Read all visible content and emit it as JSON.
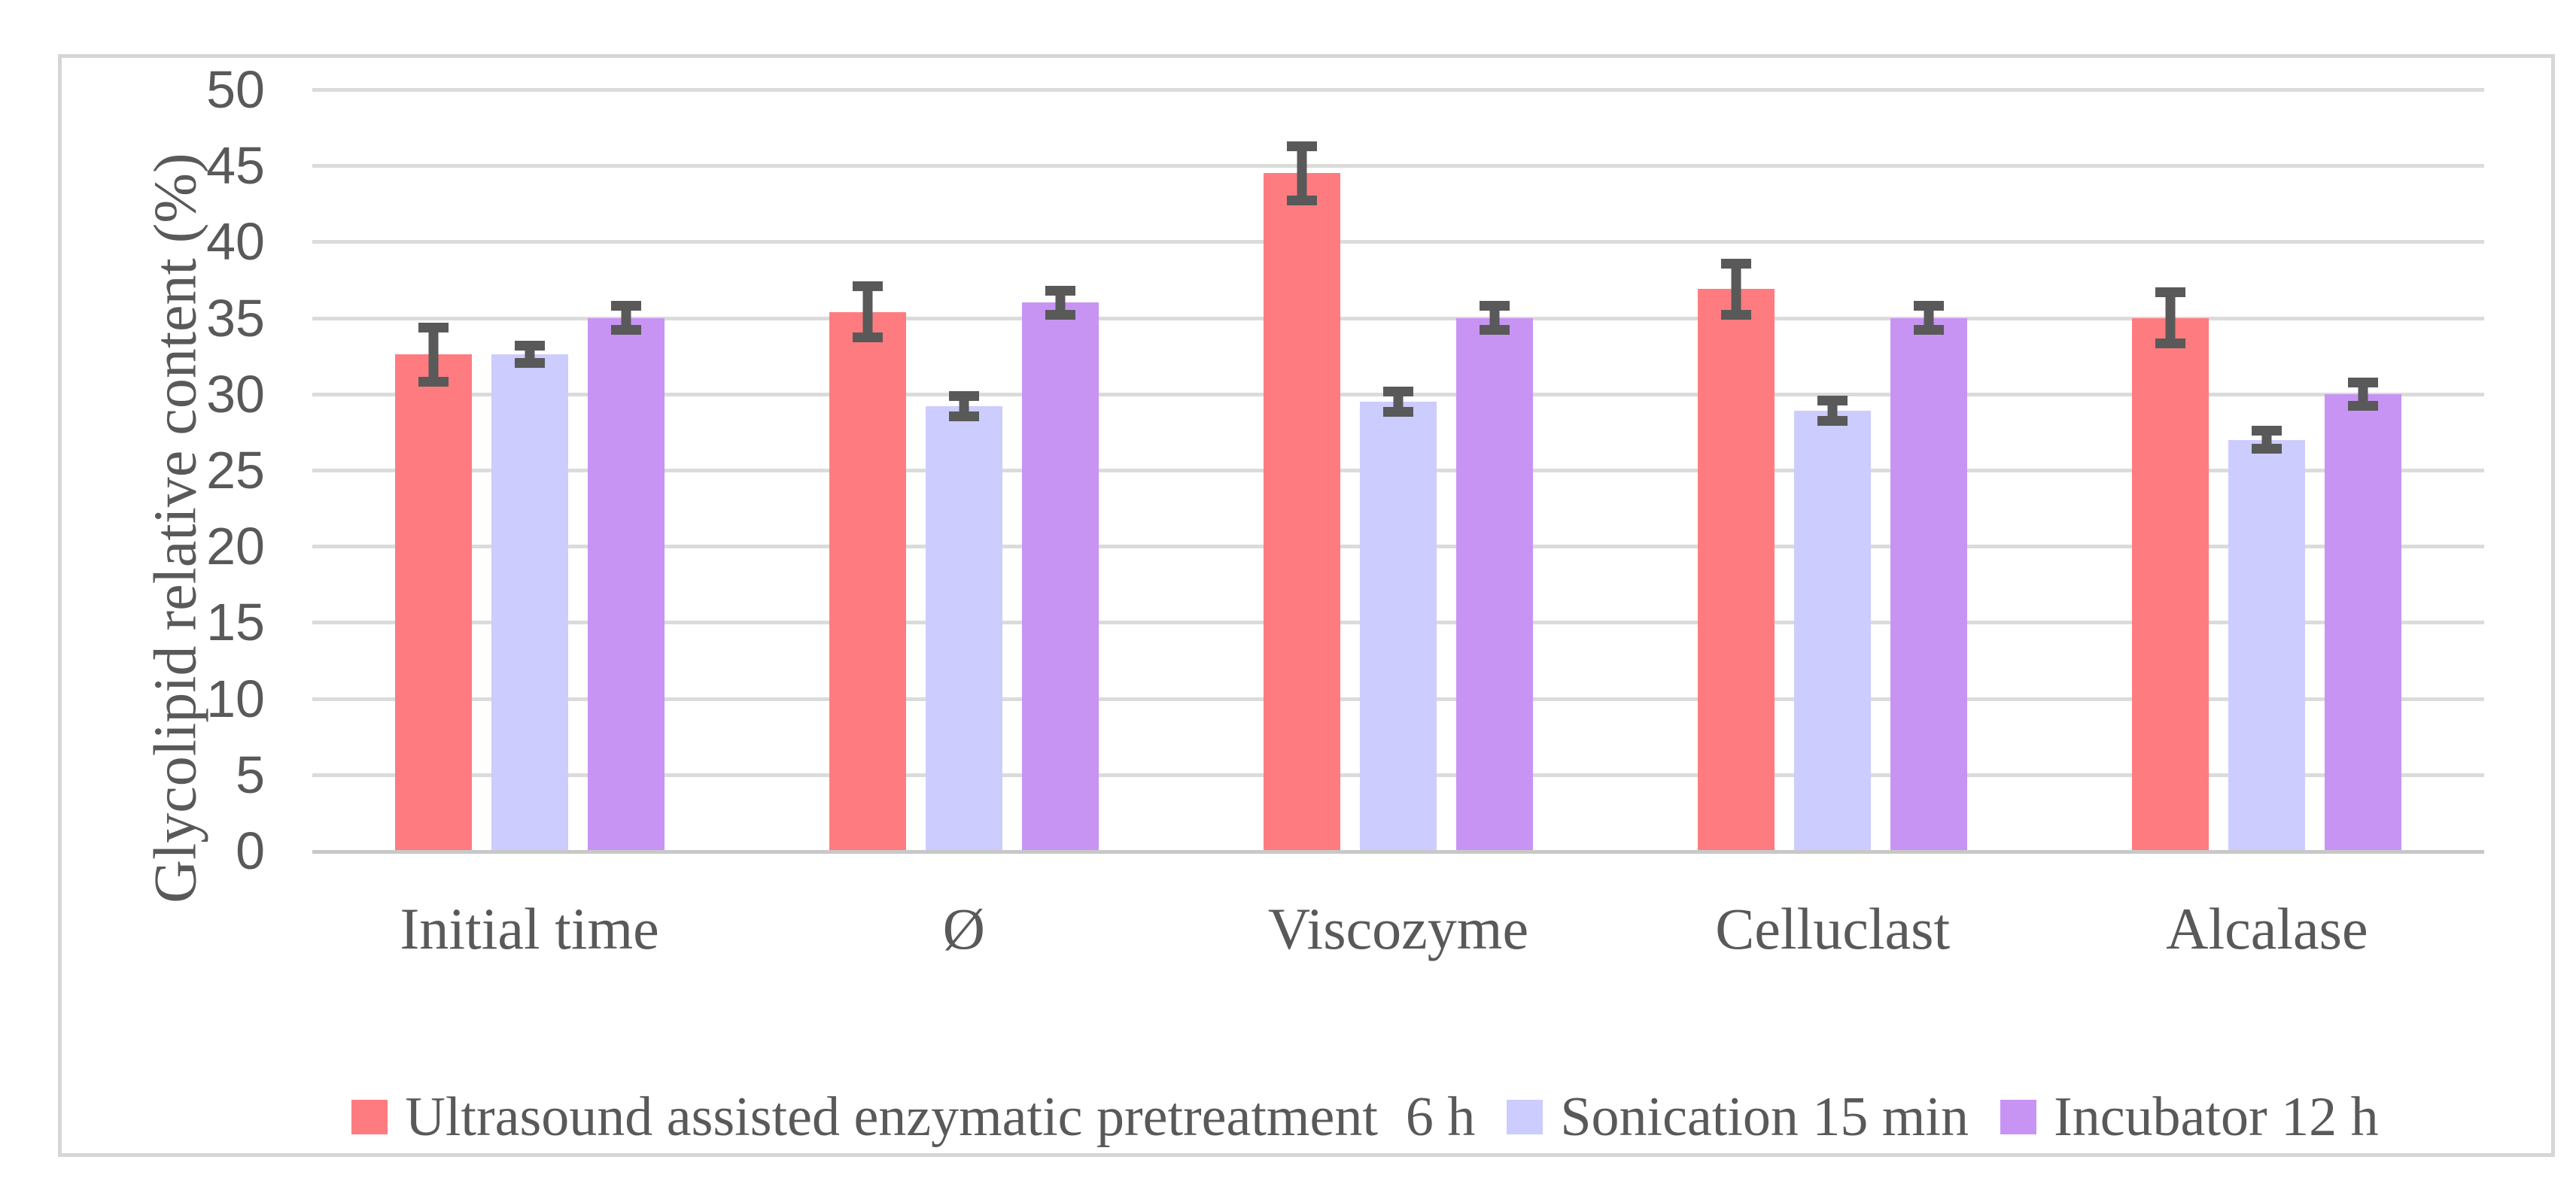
{
  "chart_data": {
    "type": "bar",
    "title": "",
    "xlabel": "",
    "ylabel": "Glycolipid relative content (%)",
    "ylim": [
      0,
      50
    ],
    "ytick_step": 5,
    "yticks": [
      "0",
      "5",
      "10",
      "15",
      "20",
      "25",
      "30",
      "35",
      "40",
      "45",
      "50"
    ],
    "grid": "horizontal",
    "legend_position": "bottom",
    "categories": [
      "Initial time",
      "Ø",
      "Viscozyme",
      "Celluclast",
      "Alcalase"
    ],
    "series": [
      {
        "name": "Ultrasound assisted enzymatic pretreatment  6 h",
        "color": "#fe7c80",
        "values": [
          32.6,
          35.4,
          44.5,
          36.9,
          35.0
        ],
        "errors": [
          2.1,
          2.0,
          2.1,
          2.0,
          2.0
        ]
      },
      {
        "name": "Sonication 15 min",
        "color": "#ccccfe",
        "values": [
          32.6,
          29.2,
          29.5,
          28.9,
          27.0
        ],
        "errors": [
          0.9,
          1.0,
          1.0,
          1.0,
          0.9
        ]
      },
      {
        "name": "Incubator 12 h",
        "color": "#c794f4",
        "values": [
          35.0,
          36.0,
          35.0,
          35.0,
          30.0
        ],
        "errors": [
          1.1,
          1.1,
          1.1,
          1.1,
          1.1
        ]
      }
    ]
  },
  "style_colors": {
    "gridline": "#dbdbdb",
    "axisline": "#c8c8c8",
    "error_bar": "#595959",
    "text": "#595959",
    "frame_border": "#d6d6d6"
  }
}
